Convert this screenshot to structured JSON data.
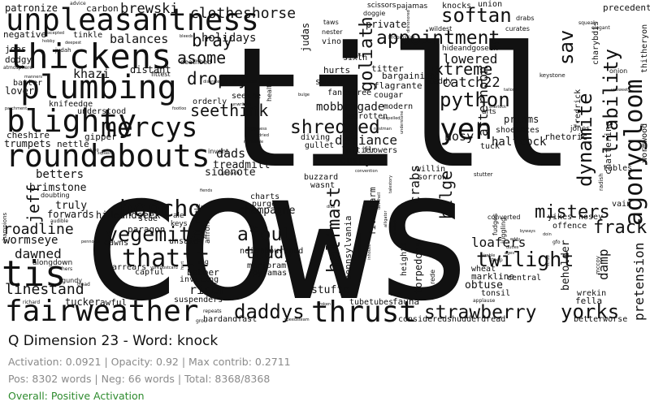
{
  "title": "Q Dimension 23 - Word: knock",
  "stats": {
    "activation": "Activation: 0.0921 | Opacity: 0.92 | Max contrib: 0.2711",
    "counts": "Pos: 8302 words | Neg: 66 words | Total: 8368/8368"
  },
  "overall": {
    "label": "Overall: Positive Activation",
    "color": "#2e8b2e"
  },
  "cloud": {
    "main": [
      "till",
      "cows"
    ],
    "large": [
      "unpleasantness",
      "thickens",
      "plumbing",
      "blighty",
      "roundabouts",
      "fairweather",
      "tis",
      "mercys",
      "agonygloom",
      "thrust",
      "strawberry",
      "yorks",
      "daddys",
      "yen",
      "shredded",
      "appointment",
      "python",
      "dynamite",
      "liability",
      "softan",
      "goliath",
      "sav",
      "honcho",
      "vegemite",
      "thatit",
      "afoul",
      "twilight",
      "misters",
      "frack",
      "jeff",
      "dropsy",
      "asome",
      "bray",
      "seethink",
      "roadline",
      "linestand",
      "wormseye",
      "dawned",
      "extreme",
      "lowered",
      "defiance",
      "crabs",
      "bilge",
      "halfmast",
      "teddy",
      "damp",
      "pretension"
    ],
    "medium": [
      "clotheshorse",
      "brewski",
      "balances",
      "holidays",
      "khazi",
      "catch22",
      "mobbrigade",
      "cushy",
      "nosy",
      "halfcock",
      "sidenote",
      "dads",
      "treadmill",
      "champagne",
      "riser",
      "stuffe",
      "betters",
      "brimstone",
      "truly",
      "forwards",
      "loafers",
      "obtuse",
      "beholder",
      "afternoon",
      "hideandseek",
      "patronize",
      "precedent",
      "carbon",
      "tinkle",
      "negative",
      "joes",
      "dodgy",
      "distant",
      "judas",
      "private",
      "union",
      "knocks",
      "bargaining",
      "flagrante",
      "cougar",
      "fancyfree",
      "swamp",
      "hurts",
      "titter",
      "sixth",
      "vino",
      "prisms",
      "shoelaces",
      "rhetoric",
      "tuck",
      "fella",
      "wrekin",
      "central",
      "tucker",
      "awful",
      "charts",
      "purge",
      "slue",
      "paragon",
      "unsaid",
      "dawns",
      "fivealarm",
      "pennsylvania",
      "torpedoes",
      "heights",
      "markline",
      "wheat",
      "tonsil",
      "neighbourhood",
      "marjoram",
      "pyjamas",
      "inviting",
      "babber",
      "suspenders",
      "hardandfast",
      "tubetubes",
      "fauna",
      "considered",
      "shudderdread",
      "betterworse",
      "chattering",
      "vain",
      "tables",
      "yikes",
      "nosey",
      "offence",
      "thitheryon",
      "wormwood",
      "fredrick",
      "charybdis",
      "nettle",
      "gipper",
      "cheshire",
      "trumpets",
      "lover",
      "batter",
      "knifeedge",
      "understood",
      "orderly",
      "seethe",
      "loftier",
      "flowers",
      "diving",
      "gullet",
      "badrotten",
      "modern",
      "arrears",
      "capful",
      "teddy",
      "sorrow",
      "willin",
      "buzzard",
      "wasnt"
    ],
    "small": [
      "advice",
      "scissors",
      "pajamas",
      "doggie",
      "taws",
      "nester",
      "wildest",
      "curates",
      "drabs",
      "squeak",
      "elegant",
      "broomstick",
      "hideandgoseek",
      "keystone",
      "onion",
      "sherlock",
      "tailors",
      "arts",
      "excepted",
      "hobby",
      "deepest",
      "bleeds",
      "deathbed",
      "fittest",
      "disorate",
      "silvermooth",
      "unwritten",
      "healthy",
      "footloo",
      "happiness",
      "dried",
      "rigmarole",
      "bulge",
      "dispelled",
      "convention",
      "jones",
      "invent",
      "preach",
      "doubting",
      "audible",
      "champions",
      "alongdown",
      "hers",
      "gundy",
      "tread",
      "richard",
      "grou",
      "repeats",
      "speedsteam",
      "broken",
      "citys",
      "applause",
      "steep",
      "sizable",
      "ages",
      "pennorth",
      "yore",
      "postcard",
      "faq",
      "hurt",
      "rattle",
      "affront",
      "ale",
      "keys",
      "sosa",
      "fiends",
      "stutter",
      "duties",
      "byways",
      "doin",
      "converted",
      "fudges",
      "juggling",
      "eddy",
      "mccoy",
      "scrub",
      "dibs",
      "rede",
      "inhouse",
      "alligator",
      "dipstick",
      "understone",
      "nestman",
      "dishonored",
      "giveandtake",
      "devilhell",
      "talestory",
      "gfo",
      "radish",
      "unsweet",
      "judah",
      "atmosphere",
      "manners",
      "parchment",
      "clung",
      "squash"
    ]
  }
}
